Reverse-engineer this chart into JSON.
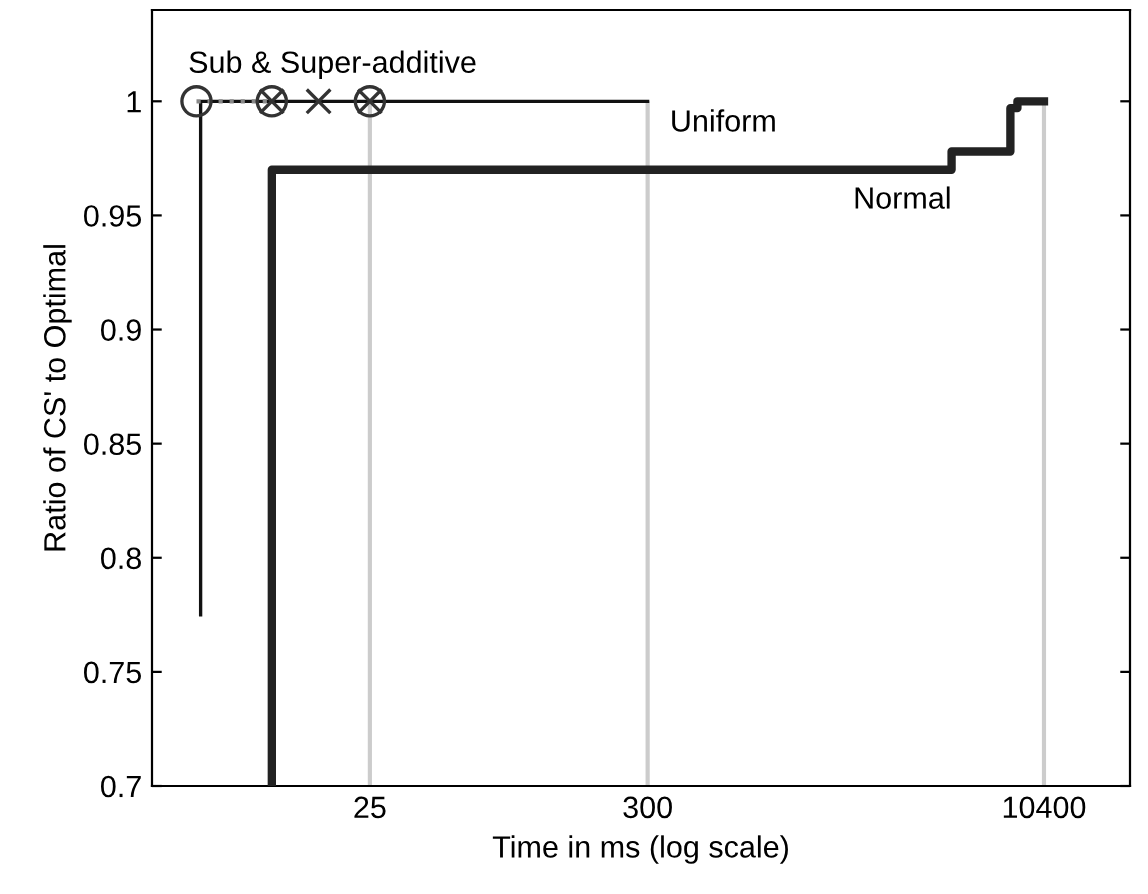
{
  "chart_data": {
    "type": "step",
    "xlabel": "Time in ms (log scale)",
    "ylabel": "Ratio of CS' to Optimal",
    "log": "x",
    "xlim": [
      3.56,
      22450
    ],
    "xticks": [
      25,
      300,
      10400
    ],
    "ylim": [
      0.7,
      1.04
    ],
    "yticks": [
      0.7,
      0.75,
      0.8,
      0.85,
      0.9,
      0.95,
      1
    ],
    "grid": false,
    "legend": false,
    "series": [
      {
        "name": "Uniform",
        "color": "#111111",
        "x": [
          5.5,
          5.5,
          300
        ],
        "values": [
          0.775,
          1,
          1
        ]
      },
      {
        "name": "Normal",
        "color": "#222222",
        "x": [
          10.4,
          10.4,
          4550,
          4550,
          7700,
          7700,
          8200,
          8200,
          10400
        ],
        "values": [
          0.7,
          0.97,
          0.97,
          0.978,
          0.978,
          0.997,
          0.997,
          1,
          1
        ]
      },
      {
        "type": "line",
        "color": "#888888",
        "line_style": "dotted",
        "marker": "none",
        "x": [
          5.3,
          10.4
        ],
        "values": [
          1,
          1
        ]
      },
      {
        "type": "scatter",
        "color": "#333333",
        "marker": "circle",
        "x": [
          5.3,
          10.4,
          25
        ],
        "values": [
          1,
          1,
          1
        ]
      },
      {
        "type": "scatter",
        "color": "#333333",
        "marker": "cross",
        "x": [
          10.4,
          15.8,
          25
        ],
        "values": [
          1,
          1,
          1
        ]
      }
    ],
    "ref_lines": [
      {
        "axis": "x",
        "value": 25,
        "color": "#cccccc"
      },
      {
        "axis": "x",
        "value": 300,
        "color": "#cccccc"
      },
      {
        "axis": "x",
        "value": 10400,
        "color": "#cccccc"
      }
    ],
    "annotations": [
      {
        "text": "Sub & Super-additive",
        "x": 5.3,
        "y": 1
      }
    ]
  }
}
